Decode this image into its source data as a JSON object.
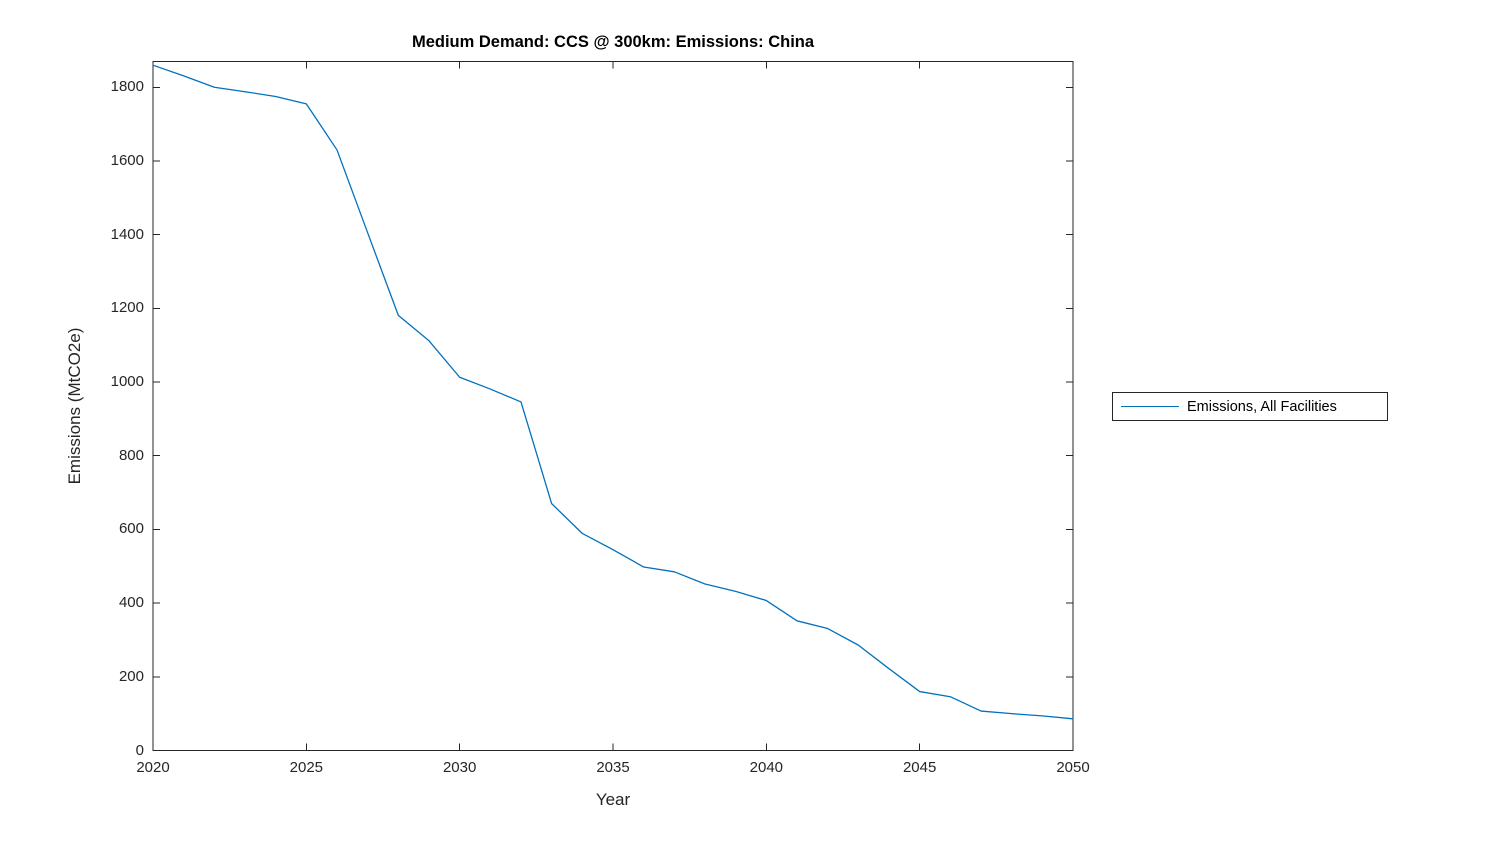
{
  "figure": {
    "background_color": "#ffffff"
  },
  "style": {
    "axis_color": "#262626",
    "tick_label_color": "#262626",
    "title_color": "#000000",
    "series_line_color": "#0072BD",
    "legend_border_color": "#262626"
  },
  "chart_data": {
    "type": "line",
    "title": "Medium Demand: CCS @ 300km: Emissions: China",
    "xlabel": "Year",
    "ylabel": "Emissions (MtCO2e)",
    "xlim": [
      2020,
      2050
    ],
    "ylim": [
      0,
      1870
    ],
    "xticks": [
      2020,
      2025,
      2030,
      2035,
      2040,
      2045,
      2050
    ],
    "yticks": [
      0,
      200,
      400,
      600,
      800,
      1000,
      1200,
      1400,
      1600,
      1800
    ],
    "grid": false,
    "box": true,
    "tick_direction": "in",
    "legend": {
      "position": "outside-right",
      "entries": [
        {
          "label": "Emissions, All Facilities",
          "color": "#0072BD"
        }
      ]
    },
    "series": [
      {
        "name": "Emissions, All Facilities",
        "color": "#0072BD",
        "x": [
          2020,
          2021,
          2022,
          2023,
          2024,
          2025,
          2026,
          2027,
          2028,
          2029,
          2030,
          2031,
          2032,
          2033,
          2034,
          2035,
          2036,
          2037,
          2038,
          2039,
          2040,
          2041,
          2042,
          2043,
          2044,
          2045,
          2046,
          2047,
          2048,
          2049,
          2050
        ],
        "values": [
          1860,
          1831,
          1800,
          1788,
          1775,
          1755,
          1630,
          1405,
          1181,
          1112,
          1013,
          981,
          946,
          670,
          589,
          545,
          498,
          485,
          452,
          432,
          407,
          352,
          331,
          286,
          222,
          160,
          146,
          107,
          100,
          94,
          86
        ]
      }
    ]
  }
}
